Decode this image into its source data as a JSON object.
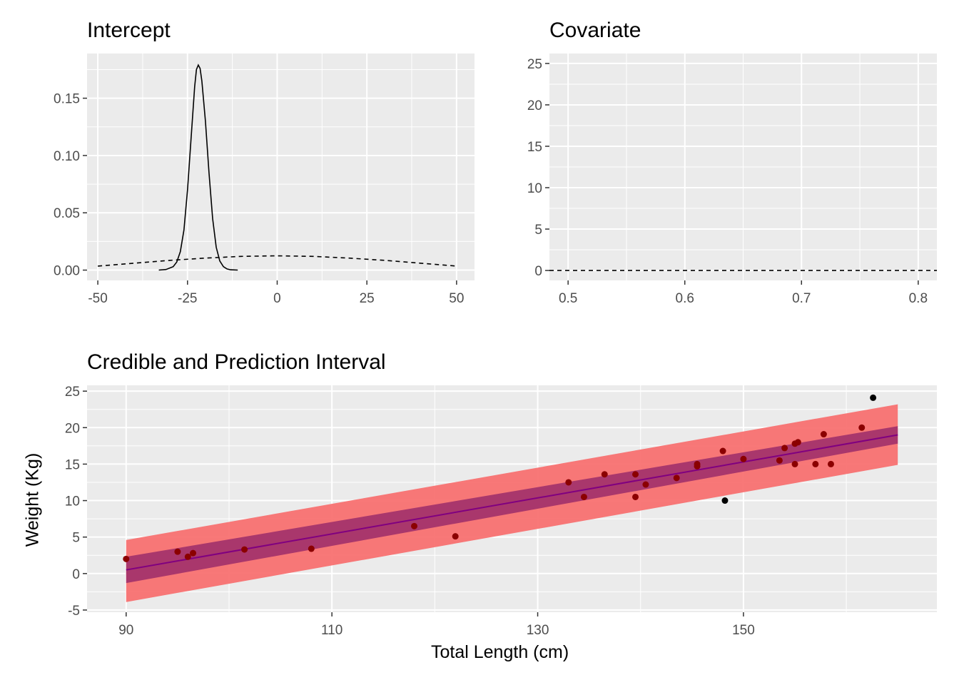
{
  "chart_data": [
    {
      "type": "line",
      "title": "Intercept",
      "xlabel": "",
      "ylabel": "",
      "xlim": [
        -53,
        55
      ],
      "ylim": [
        -0.009,
        0.189
      ],
      "xticks": [
        -50,
        -25,
        0,
        25,
        50
      ],
      "xtick_labels": [
        "-50",
        "-25",
        "0",
        "25",
        "50"
      ],
      "yticks": [
        0.0,
        0.05,
        0.1,
        0.15
      ],
      "ytick_labels": [
        "0.00",
        "0.05",
        "0.10",
        "0.15"
      ],
      "grid": true,
      "series": [
        {
          "style": "solid",
          "color": "#000000",
          "x": [
            -33,
            -31,
            -29,
            -28,
            -27,
            -26,
            -25,
            -24,
            -23,
            -22.5,
            -22,
            -21.5,
            -21,
            -20,
            -19,
            -18,
            -17,
            -16,
            -15,
            -14,
            -13,
            -11
          ],
          "y": [
            0.0,
            0.0005,
            0.003,
            0.007,
            0.016,
            0.035,
            0.07,
            0.115,
            0.16,
            0.175,
            0.179,
            0.176,
            0.165,
            0.13,
            0.085,
            0.045,
            0.02,
            0.008,
            0.003,
            0.001,
            0.0003,
            0.0
          ]
        },
        {
          "style": "dashed",
          "color": "#000000",
          "x": [
            -50,
            -40,
            -30,
            -20,
            -10,
            0,
            10,
            20,
            30,
            40,
            50
          ],
          "y": [
            0.0035,
            0.006,
            0.0085,
            0.0105,
            0.012,
            0.0125,
            0.012,
            0.0105,
            0.0085,
            0.006,
            0.0035
          ]
        }
      ]
    },
    {
      "type": "line",
      "title": "Covariate",
      "xlabel": "",
      "ylabel": "",
      "xlim": [
        0.484,
        0.816
      ],
      "ylim": [
        -1.2,
        26.2
      ],
      "xticks": [
        0.5,
        0.6,
        0.7,
        0.8
      ],
      "xtick_labels": [
        "0.5",
        "0.6",
        "0.7",
        "0.8"
      ],
      "yticks": [
        0,
        5,
        10,
        15,
        20,
        25
      ],
      "ytick_labels": [
        "0",
        "5",
        "10",
        "15",
        "20",
        "25"
      ],
      "grid": true,
      "series": [
        {
          "style": "dashed",
          "color": "#000000",
          "x": [
            0.484,
            0.816
          ],
          "y": [
            0.0,
            0.0
          ]
        }
      ]
    },
    {
      "type": "scatter",
      "title": "Credible and Prediction Interval",
      "xlabel": "Total Length (cm)",
      "ylabel": "Weight (Kg)",
      "xlim": [
        86.2,
        168.8
      ],
      "ylim": [
        -5.3,
        25.8
      ],
      "xticks": [
        90,
        110,
        130,
        150
      ],
      "xtick_labels": [
        "90",
        "110",
        "130",
        "150"
      ],
      "yticks": [
        -5,
        0,
        5,
        10,
        15,
        20,
        25
      ],
      "ytick_labels": [
        "-5",
        "0",
        "5",
        "10",
        "15",
        "20",
        "25"
      ],
      "grid": true,
      "fit_line": {
        "x": [
          90,
          165
        ],
        "y": [
          0.5,
          19.0
        ],
        "color": "#800080"
      },
      "credible_interval": {
        "x": [
          90,
          165
        ],
        "lower": [
          -1.3,
          17.8
        ],
        "upper": [
          2.3,
          20.2
        ],
        "color": "#A0306A"
      },
      "prediction_interval": {
        "x": [
          90,
          165
        ],
        "lower": [
          -3.9,
          14.9
        ],
        "upper": [
          4.6,
          23.2
        ],
        "color": "#F87171"
      },
      "points": {
        "x": [
          90,
          95,
          96,
          96.5,
          101.5,
          108,
          118,
          122,
          133,
          134.5,
          136.5,
          139.5,
          139.5,
          140.5,
          143.5,
          145.5,
          145.5,
          148,
          150,
          153.5,
          154,
          155,
          155,
          155.3,
          157,
          157.8,
          158.5,
          161.5
        ],
        "y": [
          2.0,
          3.0,
          2.3,
          2.8,
          3.3,
          3.4,
          6.5,
          5.1,
          12.5,
          10.5,
          13.6,
          13.6,
          10.5,
          12.2,
          13.1,
          15.0,
          14.7,
          16.8,
          15.7,
          15.5,
          17.2,
          15.0,
          17.8,
          18.0,
          15.0,
          19.1,
          15.0,
          20.0
        ],
        "color": "#8B0000"
      },
      "outliers": {
        "x": [
          148.2,
          162.6
        ],
        "y": [
          10.0,
          24.1
        ],
        "color": "#000000"
      }
    }
  ]
}
